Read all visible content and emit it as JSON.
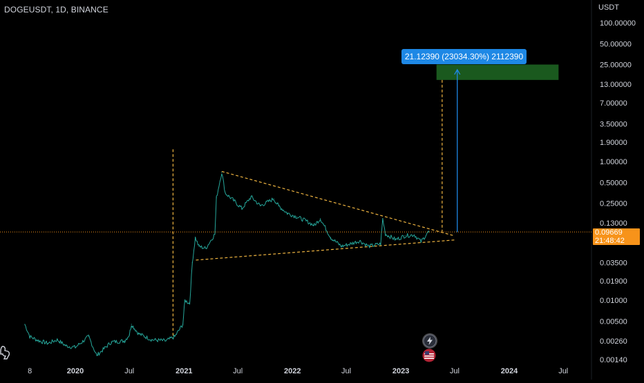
{
  "header": {
    "symbol": "DOGEUSDT, 1D, BINANCE",
    "currency": "USDT"
  },
  "price_tag": {
    "price": "0.09669",
    "countdown": "21:48:42"
  },
  "measure": {
    "label": "21.12390 (23034.30%) 2112390"
  },
  "colors": {
    "background": "#000000",
    "price_line": "#26a69a",
    "pattern": "#f0b541",
    "current_price": "#f7931a",
    "target_zone": "#1b5e20",
    "measure": "#1e88e5",
    "axis_text": "#d1d4dc"
  },
  "icons": {
    "alert": "lightning-icon",
    "events": "us-flag-icon",
    "logo": "tradingview-logo-icon"
  },
  "chart_data": {
    "type": "line",
    "title": "DOGEUSDT, 1D, BINANCE",
    "y_scale": "log",
    "y_unit": "USDT",
    "y_ticks": [
      {
        "v": 100,
        "label": "100.00000"
      },
      {
        "v": 50,
        "label": "50.00000"
      },
      {
        "v": 25,
        "label": "25.00000"
      },
      {
        "v": 13,
        "label": "13.00000"
      },
      {
        "v": 7,
        "label": "7.00000"
      },
      {
        "v": 3.5,
        "label": "3.50000"
      },
      {
        "v": 1.9,
        "label": "1.90000"
      },
      {
        "v": 1,
        "label": "1.00000"
      },
      {
        "v": 0.5,
        "label": "0.50000"
      },
      {
        "v": 0.25,
        "label": "0.25000"
      },
      {
        "v": 0.13,
        "label": "0.13000"
      },
      {
        "v": 0.035,
        "label": "0.03500"
      },
      {
        "v": 0.019,
        "label": "0.01900"
      },
      {
        "v": 0.01,
        "label": "0.01000"
      },
      {
        "v": 0.005,
        "label": "0.00500"
      },
      {
        "v": 0.0026,
        "label": "0.00260"
      },
      {
        "v": 0.0014,
        "label": "0.00140"
      }
    ],
    "x_ticks": [
      {
        "date": "2019-08-01",
        "label": "8",
        "bold": false
      },
      {
        "date": "2020-01-01",
        "label": "2020",
        "bold": true
      },
      {
        "date": "2020-07-01",
        "label": "Jul",
        "bold": false
      },
      {
        "date": "2021-01-01",
        "label": "2021",
        "bold": true
      },
      {
        "date": "2021-07-01",
        "label": "Jul",
        "bold": false
      },
      {
        "date": "2022-01-01",
        "label": "2022",
        "bold": true
      },
      {
        "date": "2022-07-01",
        "label": "Jul",
        "bold": false
      },
      {
        "date": "2023-01-01",
        "label": "2023",
        "bold": true
      },
      {
        "date": "2023-07-01",
        "label": "Jul",
        "bold": false
      },
      {
        "date": "2024-01-01",
        "label": "2024",
        "bold": true
      },
      {
        "date": "2024-07-01",
        "label": "Jul",
        "bold": false
      }
    ],
    "series": [
      {
        "values": [
          [
            "2019-07-15",
            0.0045
          ],
          [
            "2019-08-01",
            0.003
          ],
          [
            "2019-09-01",
            0.0026
          ],
          [
            "2019-10-01",
            0.0024
          ],
          [
            "2019-11-01",
            0.0027
          ],
          [
            "2019-12-01",
            0.0022
          ],
          [
            "2020-01-01",
            0.0021
          ],
          [
            "2020-02-15",
            0.003
          ],
          [
            "2020-03-13",
            0.0016
          ],
          [
            "2020-04-01",
            0.0019
          ],
          [
            "2020-05-01",
            0.0025
          ],
          [
            "2020-06-15",
            0.0026
          ],
          [
            "2020-07-01",
            0.0032
          ],
          [
            "2020-07-08",
            0.0045
          ],
          [
            "2020-08-01",
            0.0033
          ],
          [
            "2020-09-15",
            0.0027
          ],
          [
            "2020-11-01",
            0.0026
          ],
          [
            "2020-12-01",
            0.003
          ],
          [
            "2020-12-28",
            0.0045
          ],
          [
            "2021-01-04",
            0.01
          ],
          [
            "2021-01-20",
            0.009
          ],
          [
            "2021-01-29",
            0.035
          ],
          [
            "2021-02-08",
            0.08
          ],
          [
            "2021-02-20",
            0.06
          ],
          [
            "2021-03-15",
            0.056
          ],
          [
            "2021-04-15",
            0.09
          ],
          [
            "2021-04-20",
            0.3
          ],
          [
            "2021-05-08",
            0.7
          ],
          [
            "2021-05-20",
            0.35
          ],
          [
            "2021-06-15",
            0.28
          ],
          [
            "2021-07-15",
            0.21
          ],
          [
            "2021-08-15",
            0.31
          ],
          [
            "2021-09-15",
            0.23
          ],
          [
            "2021-10-30",
            0.29
          ],
          [
            "2021-11-15",
            0.23
          ],
          [
            "2021-12-15",
            0.18
          ],
          [
            "2022-01-15",
            0.16
          ],
          [
            "2022-02-15",
            0.14
          ],
          [
            "2022-03-15",
            0.12
          ],
          [
            "2022-04-05",
            0.15
          ],
          [
            "2022-05-10",
            0.08
          ],
          [
            "2022-06-15",
            0.06
          ],
          [
            "2022-07-15",
            0.065
          ],
          [
            "2022-08-15",
            0.072
          ],
          [
            "2022-09-15",
            0.06
          ],
          [
            "2022-10-25",
            0.065
          ],
          [
            "2022-11-01",
            0.15
          ],
          [
            "2022-11-10",
            0.09
          ],
          [
            "2022-12-15",
            0.075
          ],
          [
            "2023-01-15",
            0.085
          ],
          [
            "2023-02-15",
            0.088
          ],
          [
            "2023-03-10",
            0.07
          ],
          [
            "2023-04-03",
            0.096
          ],
          [
            "2023-04-06",
            0.0967
          ]
        ]
      }
    ],
    "current_price": 0.09669,
    "pattern": {
      "upper_line": [
        [
          "2021-05-08",
          0.72
        ],
        [
          "2023-06-30",
          0.085
        ]
      ],
      "lower_line": [
        [
          "2021-02-10",
          0.038
        ],
        [
          "2023-06-30",
          0.074
        ]
      ],
      "vertical_markers": [
        "2020-11-25",
        "2023-05-20"
      ]
    },
    "target_zone": {
      "from": "2023-05-01",
      "to": "2024-06-15",
      "low": 15,
      "high": 25
    },
    "measure_arrow": {
      "date": "2023-07-10",
      "from": 0.096,
      "to": 21.1239
    }
  }
}
